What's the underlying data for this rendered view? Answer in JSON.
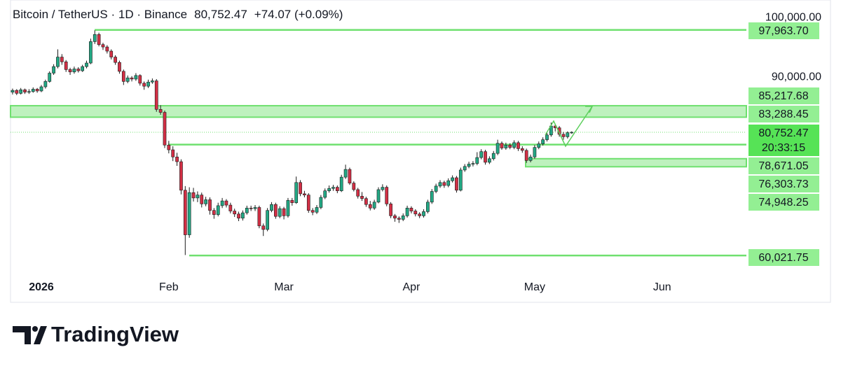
{
  "chart_data": {
    "type": "candlestick",
    "title": "Bitcoin / TetherUS · 1D · Binance",
    "last_price_label": "80,752.47",
    "change_label": "+74.07 (+0.09%)",
    "countdown": "20:33:15",
    "brand": "TradingView",
    "up_color": "#22a884",
    "down_color": "#d32f45",
    "level_color": "#6fe06f",
    "xlim": [
      -0.5,
      178.5
    ],
    "xticks": [
      {
        "value": 7,
        "label": "2026"
      },
      {
        "value": 38,
        "label": "Feb"
      },
      {
        "value": 66,
        "label": "Mar"
      },
      {
        "value": 97,
        "label": "Apr"
      },
      {
        "value": 127,
        "label": "May"
      },
      {
        "value": 158,
        "label": "Jun"
      }
    ],
    "ylim": [
      56500,
      103000
    ],
    "yticks": [
      {
        "value": 100000,
        "label": "100,000.00"
      },
      {
        "value": 90000,
        "label": "90,000.00"
      }
    ],
    "levels": [
      {
        "value": 97963.7,
        "label": "97,963.70"
      },
      {
        "value": 85217.68,
        "label": "85,217.68"
      },
      {
        "value": 83288.45,
        "label": "83,288.45"
      },
      {
        "value": 80752.47,
        "label": "80,752.47"
      },
      {
        "value": 78671.05,
        "label": "78,671.05"
      },
      {
        "value": 76303.73,
        "label": "76,303.73"
      },
      {
        "value": 74948.25,
        "label": "74,948.25"
      },
      {
        "value": 60021.75,
        "label": "60,021.75"
      }
    ],
    "open": [
      87500,
      87800,
      87300,
      87900,
      87500,
      87600,
      88000,
      87700,
      88400,
      89300,
      90700,
      91800,
      93400,
      92600,
      91300,
      90900,
      91400,
      91100,
      91800,
      92400,
      96000,
      97200,
      95500,
      95100,
      94400,
      93400,
      92500,
      91000,
      89300,
      89900,
      89700,
      90300,
      89000,
      88500,
      89200,
      89400,
      84600,
      84100,
      78600,
      77800,
      76600,
      75800,
      71000,
      63500,
      70600,
      69700,
      70200,
      68700,
      69400,
      67600,
      66900,
      68400,
      69200,
      68500,
      67500,
      67000,
      66300,
      67200,
      68000,
      67900,
      68100,
      65000,
      64400,
      67600,
      68600,
      66600,
      67900,
      66700,
      69300,
      68900,
      72300,
      70400,
      70200,
      67600,
      67300,
      68100,
      69800,
      70900,
      71300,
      71500,
      70900,
      73200,
      74500,
      72200,
      71100,
      70000,
      69600,
      68600,
      68000,
      69000,
      71100,
      71500,
      68700,
      66700,
      66300,
      66100,
      66700,
      68000,
      67500,
      67000,
      66700,
      67400,
      69000,
      70800,
      71700,
      72300,
      71800,
      72600,
      73100,
      71000,
      74400,
      75000,
      75400,
      75500,
      76500,
      77500,
      75700,
      76300,
      77200,
      78900,
      78100,
      78600,
      78200,
      79000,
      78000,
      77700,
      76000,
      76600,
      78200,
      78800,
      79500,
      80300,
      81800,
      81500,
      80400,
      80000,
      80678.4
    ],
    "high": [
      88100,
      88000,
      88200,
      88100,
      88000,
      88300,
      88200,
      88700,
      89600,
      91000,
      92200,
      94700,
      93900,
      92900,
      91600,
      91800,
      91700,
      92100,
      92800,
      96500,
      97900,
      97500,
      95800,
      95400,
      94700,
      93700,
      92800,
      91300,
      90300,
      90200,
      90700,
      90500,
      89300,
      89600,
      89800,
      89700,
      85300,
      84400,
      79300,
      78400,
      77300,
      76200,
      71700,
      71500,
      71400,
      70800,
      70600,
      69900,
      69800,
      68000,
      68900,
      69700,
      69500,
      68900,
      67900,
      67400,
      67600,
      68400,
      68400,
      68500,
      68400,
      65400,
      68000,
      69000,
      68900,
      68300,
      68200,
      69700,
      69700,
      73300,
      72700,
      70900,
      70500,
      68000,
      68500,
      70200,
      71300,
      71800,
      71900,
      71800,
      73600,
      75300,
      74800,
      72500,
      71400,
      70700,
      69900,
      69200,
      69400,
      71500,
      72000,
      71800,
      69000,
      67000,
      66600,
      67100,
      68400,
      68300,
      67800,
      67300,
      67800,
      69400,
      71200,
      72100,
      72700,
      72600,
      73000,
      73500,
      73400,
      74800,
      75400,
      75800,
      75900,
      77400,
      77900,
      77800,
      76700,
      77600,
      79500,
      79200,
      79000,
      78900,
      79400,
      79300,
      78400,
      78000,
      77000,
      78600,
      79200,
      79900,
      80700,
      82400,
      82100,
      81800,
      80800,
      80900,
      80900
    ],
    "low": [
      87100,
      87000,
      87100,
      87200,
      87200,
      87400,
      87400,
      87500,
      88100,
      89100,
      90400,
      91500,
      92100,
      90900,
      90400,
      90600,
      90800,
      90900,
      91500,
      92200,
      95600,
      95200,
      94600,
      94000,
      93000,
      92100,
      90600,
      88700,
      89000,
      89300,
      89400,
      88600,
      87900,
      88200,
      88900,
      84200,
      83700,
      78100,
      77200,
      75900,
      75100,
      70300,
      60100,
      63000,
      69100,
      69000,
      68100,
      68300,
      66900,
      66200,
      66600,
      68000,
      68100,
      67100,
      66500,
      65800,
      65900,
      66900,
      67500,
      67500,
      64600,
      63300,
      64100,
      67300,
      66200,
      66300,
      66100,
      66400,
      68400,
      68700,
      70000,
      69800,
      67200,
      66800,
      67000,
      67800,
      69500,
      70600,
      70900,
      70500,
      70700,
      72900,
      71900,
      70800,
      69600,
      69200,
      68200,
      67600,
      67700,
      68800,
      70800,
      68300,
      66300,
      65700,
      65500,
      65800,
      66400,
      67100,
      66600,
      66300,
      66400,
      67100,
      68700,
      70500,
      71400,
      71400,
      71500,
      72300,
      70600,
      70800,
      74100,
      74700,
      75000,
      75200,
      76200,
      75300,
      75400,
      76000,
      76900,
      77800,
      77800,
      77900,
      77900,
      77600,
      77300,
      75600,
      75700,
      76300,
      77900,
      78500,
      79200,
      80000,
      80900,
      80000,
      79500,
      79700,
      80500
    ],
    "close": [
      87800,
      87300,
      87900,
      87500,
      87600,
      88000,
      87700,
      88400,
      89300,
      90700,
      91800,
      93400,
      92600,
      91300,
      90900,
      91400,
      91100,
      91800,
      92400,
      96000,
      97200,
      95500,
      95100,
      94400,
      93400,
      92500,
      91000,
      89300,
      89900,
      89700,
      90300,
      89000,
      88500,
      89200,
      89400,
      84600,
      84100,
      78600,
      77800,
      76600,
      75800,
      71000,
      63500,
      70600,
      69700,
      70200,
      68700,
      69400,
      67600,
      66900,
      68400,
      69200,
      68500,
      67500,
      67000,
      66300,
      67200,
      68000,
      67900,
      68100,
      65000,
      64400,
      67600,
      68600,
      66600,
      67900,
      66700,
      69300,
      68900,
      72300,
      70400,
      70200,
      67600,
      67300,
      68100,
      69800,
      70900,
      71300,
      71500,
      70900,
      73200,
      74500,
      72200,
      71100,
      70000,
      69600,
      68600,
      68000,
      69000,
      71100,
      71500,
      68700,
      66700,
      66300,
      66100,
      66700,
      68000,
      67500,
      67000,
      66700,
      67400,
      69000,
      70800,
      71700,
      72300,
      71800,
      72600,
      73100,
      71000,
      74400,
      75000,
      75400,
      75500,
      76500,
      77500,
      75700,
      76300,
      77200,
      78900,
      78100,
      78600,
      78200,
      79000,
      78000,
      77700,
      76000,
      76600,
      78200,
      78800,
      79500,
      80300,
      81800,
      81500,
      80400,
      80000,
      80678.4,
      80752.47
    ]
  }
}
